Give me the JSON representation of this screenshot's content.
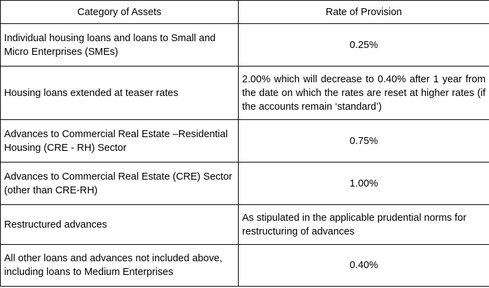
{
  "table": {
    "headers": {
      "category": "Category of Assets",
      "rate": "Rate of Provision"
    },
    "rows": [
      {
        "category": "Individual housing loans and loans to Small and Micro Enterprises (SMEs)",
        "rate": "0.25%"
      },
      {
        "category": "Housing loans extended at teaser rates",
        "rate": "2.00% which will decrease to 0.40% after 1 year from the date on which the rates are reset at higher rates (if the accounts remain ‘standard’)"
      },
      {
        "category": "Advances to Commercial Real Estate –Residential Housing (CRE - RH) Sector",
        "rate": "0.75%"
      },
      {
        "category": "Advances to Commercial Real Estate (CRE) Sector (other than CRE-RH)",
        "rate": "1.00%"
      },
      {
        "category": "Restructured advances",
        "rate": "As stipulated in the applicable prudential norms for restructuring of advances"
      },
      {
        "category": "All other loans and advances not included above, including loans to Medium Enterprises",
        "rate": "0.40%"
      }
    ]
  }
}
